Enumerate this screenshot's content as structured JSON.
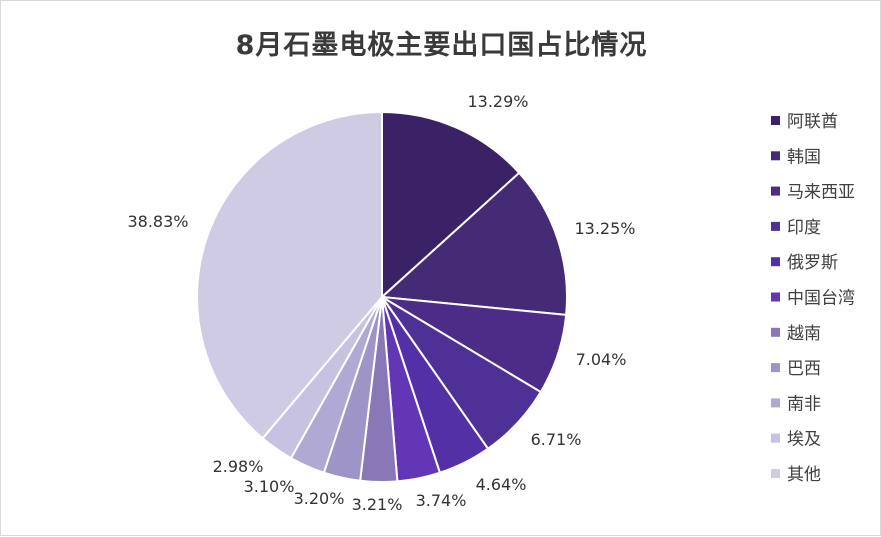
{
  "chart_data": {
    "type": "pie",
    "title": "8月石墨电极主要出口国占比情况",
    "legend_position": "right",
    "categories": [
      "阿联酋",
      "韩国",
      "马来西亚",
      "印度",
      "俄罗斯",
      "中国台湾",
      "越南",
      "巴西",
      "南非",
      "埃及",
      "其他"
    ],
    "values": [
      13.29,
      13.25,
      7.04,
      6.71,
      4.64,
      3.74,
      3.21,
      3.2,
      3.1,
      2.98,
      38.83
    ],
    "labels": [
      "13.29%",
      "13.25%",
      "7.04%",
      "6.71%",
      "4.64%",
      "3.74%",
      "3.21%",
      "3.20%",
      "3.10%",
      "2.98%",
      "38.83%"
    ],
    "colors": [
      "#3b2266",
      "#452a75",
      "#4c2c86",
      "#4f3096",
      "#5430a6",
      "#6236b4",
      "#8a77b8",
      "#9e94c8",
      "#b0a9d4",
      "#c8c2e2",
      "#cfcbe4"
    ]
  }
}
